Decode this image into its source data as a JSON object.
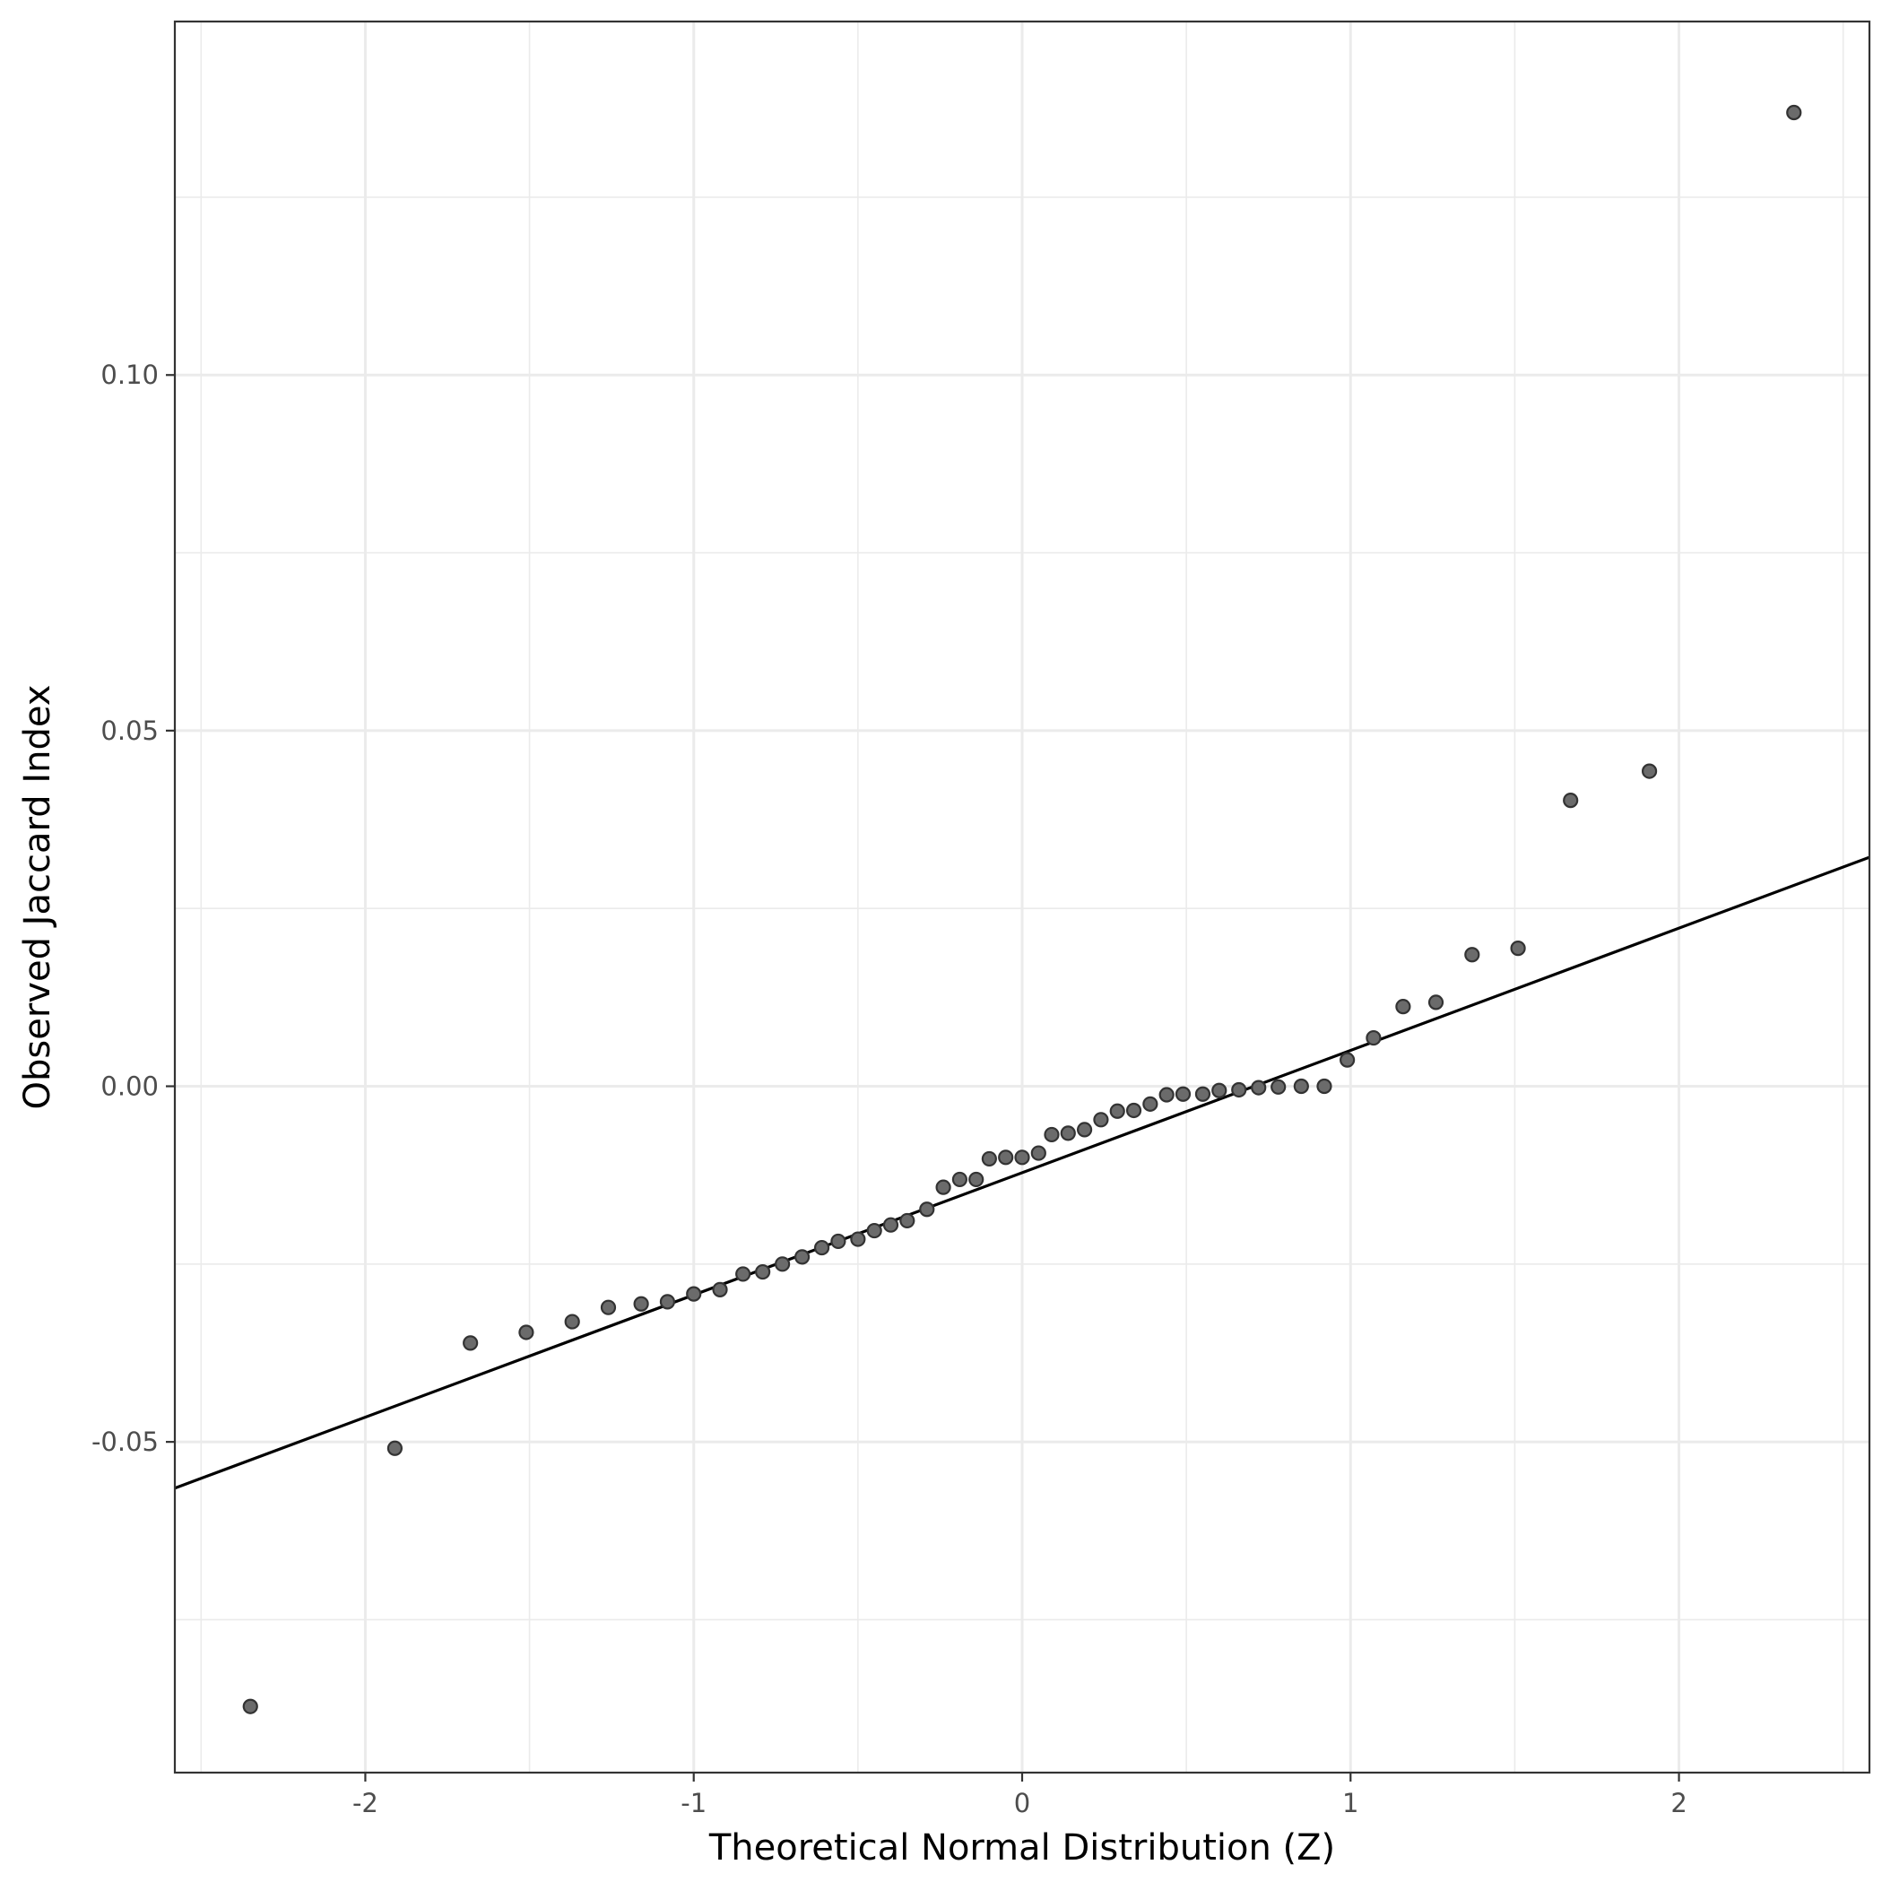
{
  "chart_data": {
    "type": "scatter",
    "title": "",
    "xlabel": "Theoretical Normal Distribution (Z)",
    "ylabel": "Observed Jaccard Index",
    "xlim": [
      -2.58,
      2.58
    ],
    "ylim": [
      -0.0965,
      0.1497
    ],
    "x_ticks": [
      -2,
      -1,
      0,
      1,
      2
    ],
    "x_tick_labels": [
      "-2",
      "-1",
      "0",
      "1",
      "2"
    ],
    "y_ticks": [
      -0.05,
      0.0,
      0.05,
      0.1
    ],
    "y_tick_labels": [
      "-0.05",
      "0.00",
      "0.05",
      "0.10"
    ],
    "grid": true,
    "reference_line": {
      "x": [
        -2.58,
        2.58
      ],
      "y": [
        -0.0565,
        0.0322
      ]
    },
    "points": [
      {
        "x": -2.35,
        "y": -0.0872
      },
      {
        "x": -1.91,
        "y": -0.0509
      },
      {
        "x": -1.68,
        "y": -0.0361
      },
      {
        "x": -1.51,
        "y": -0.0346
      },
      {
        "x": -1.37,
        "y": -0.0331
      },
      {
        "x": -1.26,
        "y": -0.0311
      },
      {
        "x": -1.16,
        "y": -0.0306
      },
      {
        "x": -1.08,
        "y": -0.0303
      },
      {
        "x": -1.0,
        "y": -0.0292
      },
      {
        "x": -0.92,
        "y": -0.0286
      },
      {
        "x": -0.85,
        "y": -0.0264
      },
      {
        "x": -0.79,
        "y": -0.0261
      },
      {
        "x": -0.73,
        "y": -0.025
      },
      {
        "x": -0.67,
        "y": -0.024
      },
      {
        "x": -0.61,
        "y": -0.0227
      },
      {
        "x": -0.56,
        "y": -0.0218
      },
      {
        "x": -0.5,
        "y": -0.0215
      },
      {
        "x": -0.45,
        "y": -0.0203
      },
      {
        "x": -0.4,
        "y": -0.0195
      },
      {
        "x": -0.35,
        "y": -0.0189
      },
      {
        "x": -0.29,
        "y": -0.0173
      },
      {
        "x": -0.24,
        "y": -0.0142
      },
      {
        "x": -0.19,
        "y": -0.0131
      },
      {
        "x": -0.14,
        "y": -0.0131
      },
      {
        "x": -0.1,
        "y": -0.0102
      },
      {
        "x": -0.05,
        "y": -0.01
      },
      {
        "x": 0.0,
        "y": -0.01
      },
      {
        "x": 0.05,
        "y": -0.0094
      },
      {
        "x": 0.09,
        "y": -0.0068
      },
      {
        "x": 0.14,
        "y": -0.0066
      },
      {
        "x": 0.19,
        "y": -0.0061
      },
      {
        "x": 0.24,
        "y": -0.0047
      },
      {
        "x": 0.29,
        "y": -0.0035
      },
      {
        "x": 0.34,
        "y": -0.0034
      },
      {
        "x": 0.39,
        "y": -0.0025
      },
      {
        "x": 0.44,
        "y": -0.0012
      },
      {
        "x": 0.49,
        "y": -0.0011
      },
      {
        "x": 0.55,
        "y": -0.0011
      },
      {
        "x": 0.6,
        "y": -0.0006
      },
      {
        "x": 0.66,
        "y": -0.0005
      },
      {
        "x": 0.72,
        "y": -0.0002
      },
      {
        "x": 0.78,
        "y": -0.0001
      },
      {
        "x": 0.85,
        "y": 0.0
      },
      {
        "x": 0.92,
        "y": 0.0
      },
      {
        "x": 0.99,
        "y": 0.0037
      },
      {
        "x": 1.07,
        "y": 0.0068
      },
      {
        "x": 1.16,
        "y": 0.0112
      },
      {
        "x": 1.26,
        "y": 0.0118
      },
      {
        "x": 1.37,
        "y": 0.0185
      },
      {
        "x": 1.51,
        "y": 0.0194
      },
      {
        "x": 1.67,
        "y": 0.0402
      },
      {
        "x": 1.91,
        "y": 0.0443
      },
      {
        "x": 2.35,
        "y": 0.1369
      }
    ]
  },
  "colors": {
    "point_fill": "#6b6b6b",
    "point_stroke": "#333333",
    "grid": "#ebebeb",
    "panel_border": "#333333",
    "ref_line": "#000000",
    "tick_text": "#4d4d4d"
  }
}
